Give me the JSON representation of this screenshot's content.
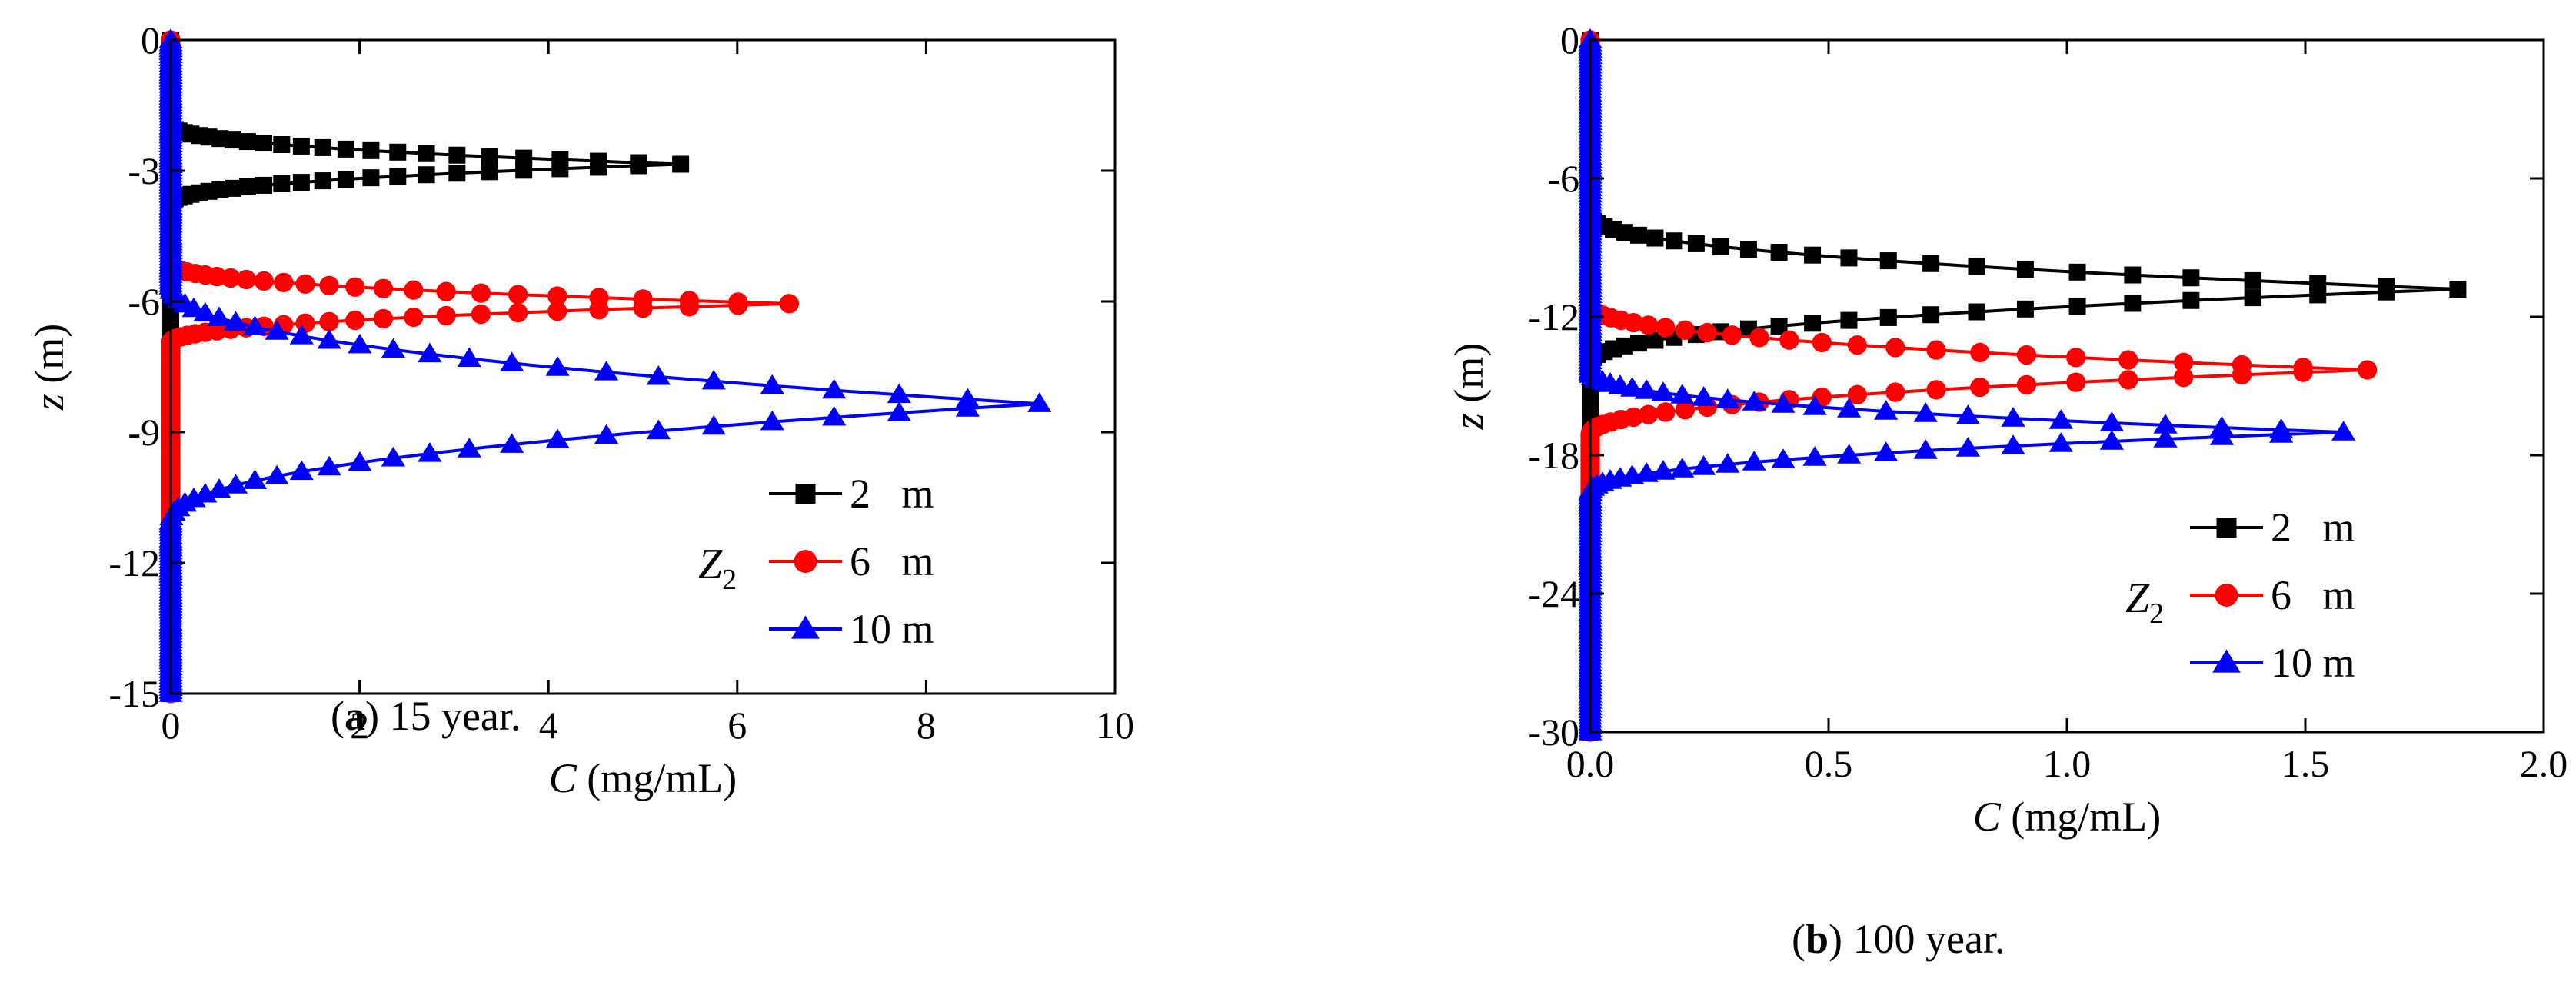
{
  "figure": {
    "caption_a": {
      "letter": "a",
      "rest": " 15 year."
    },
    "caption_b": {
      "letter": "b",
      "rest": " 100 year."
    }
  },
  "chart_data": [
    {
      "type": "line",
      "panel": "a",
      "xlabel": {
        "var": "C",
        "unit": " (mg/mL)"
      },
      "ylabel": {
        "var": "z",
        "unit": " (m)"
      },
      "xlim": [
        0,
        10
      ],
      "ylim": [
        -15,
        0
      ],
      "xticks": [
        0,
        2,
        4,
        6,
        8,
        10
      ],
      "xtick_labels": [
        "0",
        "2",
        "4",
        "6",
        "8",
        "10"
      ],
      "yticks": [
        0,
        -3,
        -6,
        -9,
        -12,
        -15
      ],
      "ytick_labels": [
        "0",
        "-3",
        "-6",
        "-9",
        "-12",
        "-15"
      ],
      "legend": {
        "position": "bottom-right",
        "group_label": "Z",
        "group_sub": "2"
      },
      "series": [
        {
          "name": "2   m",
          "color": "#000000",
          "marker": "square",
          "peak_z": -2.85,
          "peak_c": 5.4,
          "half_width_m": 0.9
        },
        {
          "name": "6   m",
          "color": "#ff0000",
          "marker": "circle",
          "peak_z": -6.05,
          "peak_c": 6.55,
          "half_width_m": 0.9
        },
        {
          "name": "10 m",
          "color": "#0000ff",
          "marker": "triangle",
          "peak_z": -8.35,
          "peak_c": 9.2,
          "half_width_m": 2.7
        }
      ]
    },
    {
      "type": "line",
      "panel": "b",
      "xlabel": {
        "var": "C",
        "unit": " (mg/mL)"
      },
      "ylabel": {
        "var": "z",
        "unit": " (m)"
      },
      "xlim": [
        0,
        2
      ],
      "ylim": [
        -30,
        0
      ],
      "xticks": [
        0,
        0.5,
        1,
        1.5,
        2
      ],
      "xtick_labels": [
        "0.0",
        "0.5",
        "1.0",
        "1.5",
        "2.0"
      ],
      "yticks": [
        0,
        -6,
        -12,
        -18,
        -24,
        -30
      ],
      "ytick_labels": [
        "0",
        "-6",
        "-12",
        "-18",
        "-24",
        "-30"
      ],
      "legend": {
        "position": "bottom-right",
        "group_label": "Z",
        "group_sub": "2"
      },
      "series": [
        {
          "name": "2   m",
          "color": "#000000",
          "marker": "square",
          "peak_z": -10.8,
          "peak_c": 1.82,
          "half_width_m": 3.2
        },
        {
          "name": "6   m",
          "color": "#ff0000",
          "marker": "circle",
          "peak_z": -14.3,
          "peak_c": 1.63,
          "half_width_m": 2.8
        },
        {
          "name": "10 m",
          "color": "#0000ff",
          "marker": "triangle",
          "peak_z": -17.0,
          "peak_c": 1.58,
          "half_width_m": 2.6
        }
      ]
    }
  ]
}
